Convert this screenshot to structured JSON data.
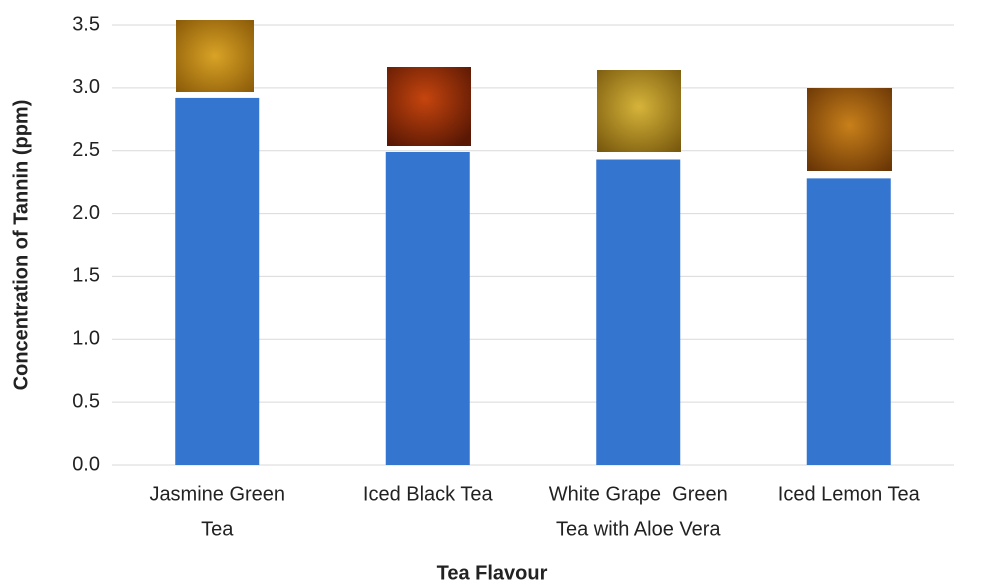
{
  "chart_data": {
    "type": "bar",
    "x_label": "Tea Flavour",
    "y_label": "Concentration of Tannin (ppm)",
    "categories": [
      [
        "Jasmine Green",
        "Tea"
      ],
      [
        "Iced Black Tea"
      ],
      [
        "White Grape  Green",
        "Tea with Aloe Vera"
      ],
      [
        "Iced Lemon Tea"
      ]
    ],
    "values": [
      2.92,
      2.49,
      2.43,
      2.28
    ],
    "color": "#3375cf",
    "ylim": [
      0,
      3.5
    ],
    "yticks": [
      {
        "value": 0,
        "label": "0.0"
      },
      0.5,
      {
        "value": 1,
        "label": "1.0"
      },
      1.5,
      {
        "value": 2,
        "label": "2.0"
      },
      2.5,
      {
        "value": 3,
        "label": "3.0"
      },
      3.5
    ],
    "grid": true
  }
}
